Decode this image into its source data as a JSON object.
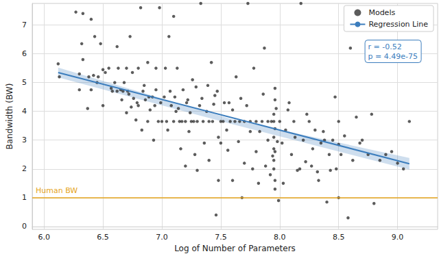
{
  "chart_data": {
    "type": "scatter",
    "xlabel": "Log of Number of Parameters",
    "ylabel": "Bandwidth (BW)",
    "xlim": [
      5.9,
      9.34
    ],
    "ylim": [
      -0.1,
      7.75
    ],
    "xticks": [
      {
        "value": 6,
        "label": "6.0"
      },
      {
        "value": 6.5,
        "label": "6.5"
      },
      {
        "value": 7,
        "label": "7.0"
      },
      {
        "value": 7.5,
        "label": "7.5"
      },
      {
        "value": 8,
        "label": "8.0"
      },
      {
        "value": 8.5,
        "label": "8.5"
      },
      {
        "value": 9,
        "label": "9.0"
      }
    ],
    "yticks": [
      0,
      1,
      2,
      3,
      4,
      5,
      6,
      7
    ],
    "grid": true,
    "legend": "upper right",
    "annotation": [
      "r = -0.52",
      "p = 4.49e-75"
    ],
    "hlines": [
      {
        "value": 1,
        "label": "Human BW",
        "color": "#e5a31a"
      }
    ],
    "series": [
      {
        "name": "Models",
        "type": "scatter",
        "marker": "circle",
        "color": "#333333",
        "x": [
          6.12,
          6.13,
          6.27,
          6.3,
          6.33,
          6.38,
          6.4,
          6.42,
          6.43,
          6.45,
          6.46,
          6.48,
          6.5,
          6.5,
          6.52,
          6.33,
          6.3,
          6.32,
          6.37,
          6.4,
          6.55,
          6.57,
          6.6,
          6.62,
          6.63,
          6.65,
          6.66,
          6.68,
          6.7,
          6.7,
          6.72,
          6.73,
          6.75,
          6.76,
          6.78,
          6.8,
          6.8,
          6.82,
          6.83,
          6.85,
          6.86,
          6.88,
          6.88,
          6.9,
          6.92,
          6.93,
          6.95,
          6.95,
          6.97,
          6.98,
          6.58,
          6.62,
          6.67,
          6.71,
          6.74,
          6.79,
          6.84,
          6.89,
          6.94,
          6.99,
          7.0,
          7.02,
          7.03,
          7.05,
          7.06,
          7.08,
          7.1,
          7.1,
          7.12,
          7.13,
          7.15,
          7.16,
          7.18,
          7.2,
          7.2,
          7.22,
          7.23,
          7.25,
          7.26,
          7.28,
          7.3,
          7.3,
          7.32,
          7.33,
          7.35,
          7.36,
          7.38,
          7.4,
          7.4,
          7.42,
          7.43,
          7.45,
          7.46,
          7.48,
          7.48,
          7.5,
          7.5,
          7.04,
          7.17,
          7.27,
          7.07,
          7.14,
          7.21,
          7.29,
          7.34,
          7.39,
          7.44,
          7.47,
          7.11,
          7.24,
          7.52,
          7.53,
          7.55,
          7.56,
          7.58,
          7.6,
          7.6,
          7.62,
          7.63,
          7.65,
          7.66,
          7.68,
          7.7,
          7.7,
          7.72,
          7.73,
          7.75,
          7.75,
          7.77,
          7.78,
          7.8,
          7.8,
          7.82,
          7.83,
          7.85,
          7.86,
          7.88,
          7.9,
          7.9,
          7.92,
          7.93,
          7.94,
          7.95,
          7.96,
          7.97,
          7.98,
          7.99,
          7.57,
          7.67,
          7.87,
          8.0,
          8.02,
          8.05,
          8.07,
          8.1,
          8.12,
          8.15,
          8.18,
          8.2,
          8.22,
          8.25,
          8.28,
          8.3,
          8.33,
          8.35,
          8.38,
          8.4,
          8.42,
          8.45,
          8.48,
          8.08,
          8.13,
          8.17,
          8.23,
          8.27,
          8.32,
          8.37,
          8.43,
          8.47,
          8.03,
          8.5,
          8.5,
          8.5,
          8.52,
          8.55,
          8.58,
          8.6,
          8.62,
          8.65,
          8.68,
          8.7,
          8.75,
          8.78,
          8.8,
          8.85,
          8.9,
          8.95,
          9.0,
          9.05,
          9.1,
          7.95,
          7.95,
          7.95,
          7.95,
          7.95,
          7.96,
          7.96,
          7.96,
          7.96,
          7.96
        ],
        "values": [
          5.65,
          5.2,
          7.45,
          5.3,
          7.4,
          5.2,
          4.75,
          5.25,
          6.6,
          5.0,
          5.2,
          6.35,
          5.45,
          4.2,
          5.35,
          5.8,
          4.75,
          6.35,
          4.1,
          7.2,
          5.5,
          4.8,
          5.0,
          6.25,
          5.5,
          4.75,
          4.4,
          5.0,
          5.5,
          3.95,
          4.6,
          6.6,
          5.35,
          4.45,
          3.7,
          5.5,
          4.2,
          7.6,
          3.35,
          4.9,
          4.4,
          3.65,
          5.7,
          4.05,
          4.5,
          3.0,
          5.5,
          4.75,
          3.65,
          7.6,
          4.7,
          4.7,
          4.7,
          4.7,
          4.15,
          4.3,
          4.7,
          4.5,
          4.2,
          4.3,
          3.65,
          4.5,
          5.5,
          3.35,
          6.6,
          4.2,
          3.65,
          7.3,
          4.0,
          5.5,
          3.65,
          2.7,
          4.75,
          3.65,
          2.1,
          4.4,
          3.3,
          3.65,
          5.1,
          2.5,
          3.65,
          1.95,
          4.2,
          7.75,
          3.65,
          2.9,
          4.0,
          3.65,
          2.3,
          5.7,
          3.65,
          4.55,
          0.4,
          3.1,
          1.6,
          3.65,
          2.9,
          3.65,
          3.65,
          3.65,
          4.7,
          4.1,
          4.3,
          4.85,
          4.45,
          4.9,
          4.25,
          4.7,
          4.5,
          3.95,
          3.65,
          4.3,
          3.35,
          2.65,
          3.65,
          4.05,
          1.6,
          3.65,
          5.2,
          2.95,
          3.65,
          1.0,
          3.65,
          2.2,
          4.2,
          7.75,
          3.65,
          3.3,
          2.0,
          5.5,
          3.65,
          2.6,
          1.5,
          3.3,
          3.65,
          4.6,
          2.1,
          3.65,
          3.0,
          1.8,
          3.65,
          2.45,
          3.65,
          1.3,
          4.1,
          2.95,
          0.9,
          4.3,
          4.45,
          6.2,
          3.65,
          2.9,
          3.35,
          4.05,
          2.5,
          3.65,
          1.95,
          7.75,
          3.0,
          2.25,
          3.65,
          2.7,
          3.35,
          1.6,
          2.9,
          3.0,
          0.85,
          2.5,
          3.0,
          2.0,
          4.3,
          3.1,
          2.0,
          3.9,
          2.1,
          1.9,
          3.3,
          1.95,
          4.5,
          1.5,
          3.65,
          2.85,
          1.0,
          2.5,
          3.15,
          0.3,
          6.2,
          2.3,
          3.8,
          2.9,
          3.0,
          2.5,
          3.9,
          0.8,
          2.3,
          2.5,
          2.6,
          2.2,
          2.0,
          3.65,
          2.0,
          2.3,
          2.7,
          3.1,
          3.9,
          1.6,
          2.6,
          3.4,
          4.4,
          4.8
        ]
      },
      {
        "name": "Regression Line",
        "type": "line",
        "line_style": "solid",
        "color": "#3b7dbd",
        "x": [
          6.12,
          9.1
        ],
        "values": [
          5.35,
          2.18
        ],
        "band_x": [
          6.12,
          7.6,
          9.1
        ],
        "band_lower": [
          5.18,
          3.55,
          1.98
        ],
        "band_upper": [
          5.52,
          3.72,
          2.38
        ]
      }
    ]
  }
}
